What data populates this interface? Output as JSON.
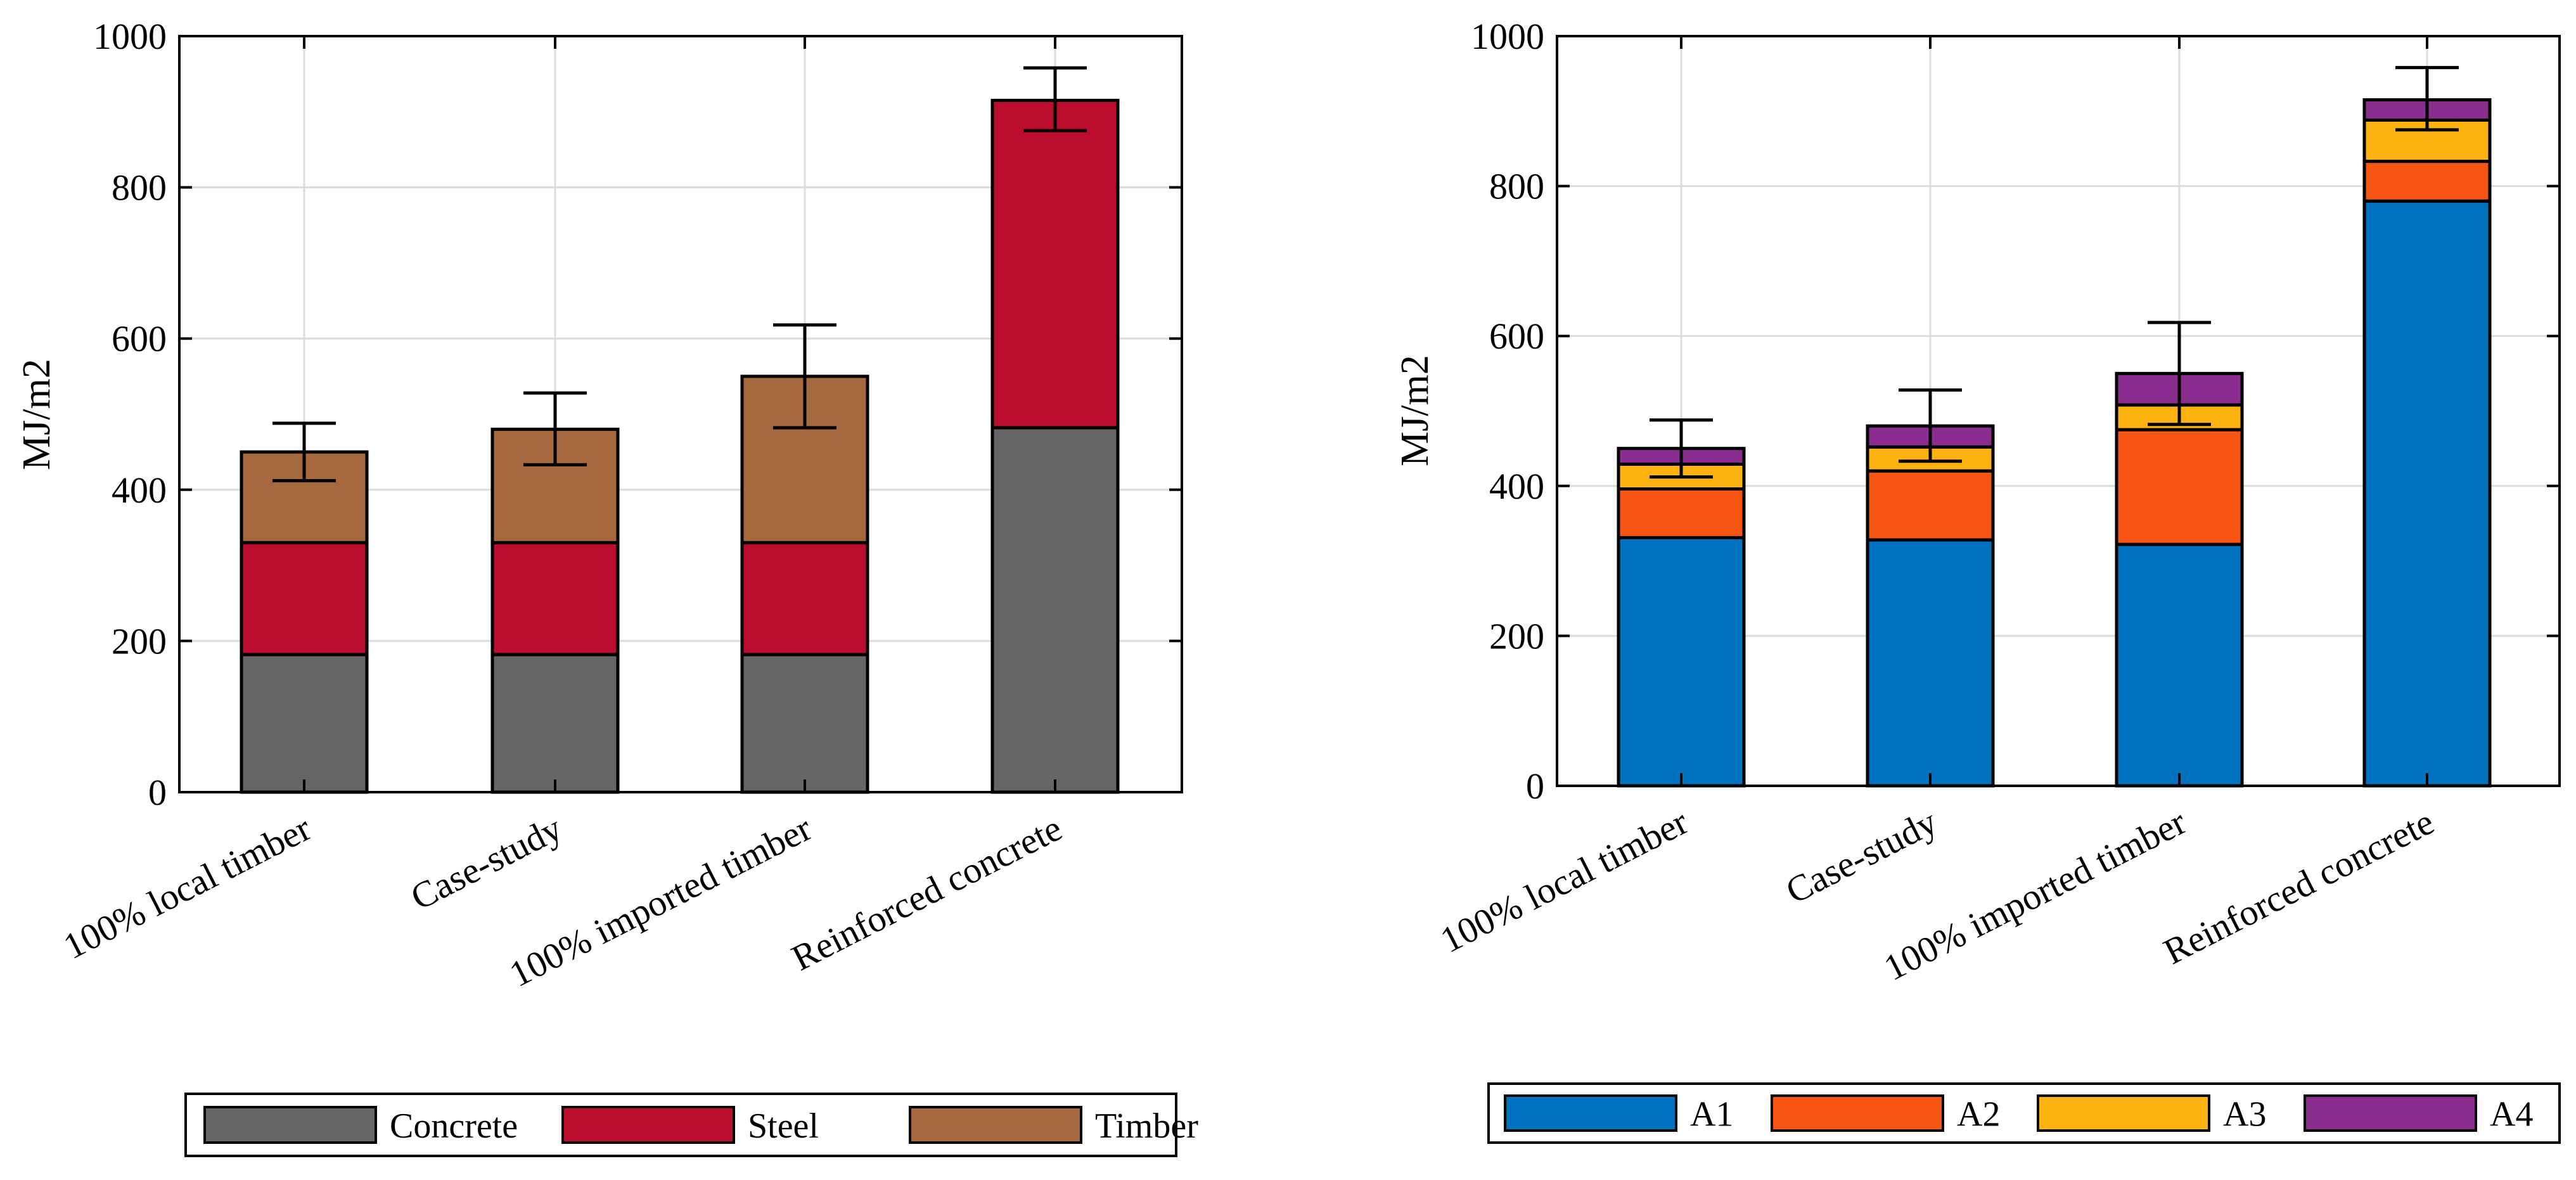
{
  "chart_data": [
    {
      "type": "bar",
      "stacked": true,
      "categories": [
        "100% local timber",
        "Case-study",
        "100% imported timber",
        "Reinforced concrete"
      ],
      "ylabel": "MJ/m2",
      "xlabel": "",
      "ylim": [
        0,
        1000
      ],
      "yticks": [
        "0",
        "200",
        "400",
        "600",
        "800",
        "1000"
      ],
      "grid": true,
      "legend_position": "bottom",
      "series": [
        {
          "name": "Concrete",
          "color": "#666666",
          "values": [
            182,
            182,
            182,
            482
          ]
        },
        {
          "name": "Steel",
          "color": "#bd0d2e",
          "values": [
            148,
            148,
            148,
            433
          ]
        },
        {
          "name": "Timber",
          "color": "#a5693d",
          "values": [
            120,
            150,
            220,
            0
          ]
        }
      ],
      "error_bars": {
        "lower": [
          412,
          433,
          482,
          875
        ],
        "upper": [
          488,
          528,
          618,
          958
        ]
      }
    },
    {
      "type": "bar",
      "stacked": true,
      "categories": [
        "100% local timber",
        "Case-study",
        "100% imported timber",
        "Reinforced concrete"
      ],
      "ylabel": "MJ/m2",
      "xlabel": "",
      "ylim": [
        0,
        1000
      ],
      "yticks": [
        "0",
        "200",
        "400",
        "600",
        "800",
        "1000"
      ],
      "grid": true,
      "legend_position": "bottom",
      "series": [
        {
          "name": "A1",
          "color": "#0072bd",
          "values": [
            331,
            328,
            322,
            780
          ]
        },
        {
          "name": "A2",
          "color": "#f65512",
          "values": [
            65,
            92,
            153,
            53
          ]
        },
        {
          "name": "A3",
          "color": "#fdb20f",
          "values": [
            33,
            32,
            33,
            55
          ]
        },
        {
          "name": "A4",
          "color": "#8b2d8e",
          "values": [
            21,
            28,
            42,
            27
          ]
        }
      ],
      "error_bars": {
        "lower": [
          412,
          433,
          482,
          875
        ],
        "upper": [
          488,
          528,
          618,
          958
        ]
      }
    }
  ]
}
